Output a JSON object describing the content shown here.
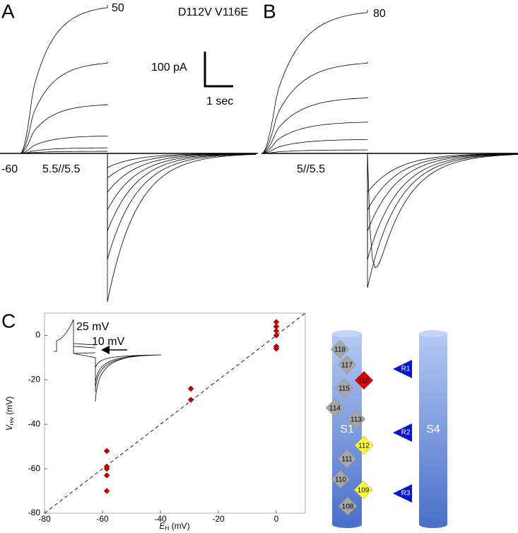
{
  "title": "D112V V116E",
  "scale_bar": {
    "y_label": "100 pA",
    "x_label": "1 sec"
  },
  "panels": [
    {
      "label": "A",
      "step_label": "50",
      "hold_label": "-60",
      "solution_label": "5.5//5.5"
    },
    {
      "label": "B",
      "step_label": "80",
      "solution_label": "5//5.5"
    }
  ],
  "chart_data": {
    "type": "scatter",
    "label": "C",
    "x_label": "E",
    "x_label_sub": "H",
    "x_unit": " (mV)",
    "y_label": "V",
    "y_label_sub": "rev",
    "y_unit": " (mV)",
    "x": [
      -58.5,
      -58.5,
      -58.5,
      -58.5,
      -58.5,
      -29.5,
      -29.5,
      0,
      0,
      0,
      0,
      0,
      0
    ],
    "values": [
      -52,
      -59,
      -60,
      -63,
      -70,
      -24,
      -29,
      6,
      4,
      2,
      0,
      -5,
      -6
    ],
    "color": "#c00000",
    "xlim": [
      -80,
      10
    ],
    "ylim": [
      -80,
      10
    ],
    "xticks": [
      -80,
      -60,
      -40,
      -20,
      0
    ],
    "yticks": [
      -80,
      -60,
      -40,
      -20,
      0
    ],
    "inset_labels": [
      "25 mV",
      "10 mV"
    ]
  },
  "diagram": {
    "helices": [
      "S1",
      "S4"
    ],
    "residues": [
      {
        "label": "118",
        "color": "#a6a6a6"
      },
      {
        "label": "117",
        "color": "#a6a6a6"
      },
      {
        "label": "116",
        "color": "#e00000"
      },
      {
        "label": "115",
        "color": "#a6a6a6"
      },
      {
        "label": "114",
        "color": "#a6a6a6"
      },
      {
        "label": "113",
        "color": "#a6a6a6"
      },
      {
        "label": "112",
        "color": "#ffff33"
      },
      {
        "label": "111",
        "color": "#a6a6a6"
      },
      {
        "label": "110",
        "color": "#a6a6a6"
      },
      {
        "label": "109",
        "color": "#ffff33"
      },
      {
        "label": "108",
        "color": "#a6a6a6"
      }
    ],
    "charges": [
      "R1",
      "R2",
      "R3"
    ]
  }
}
